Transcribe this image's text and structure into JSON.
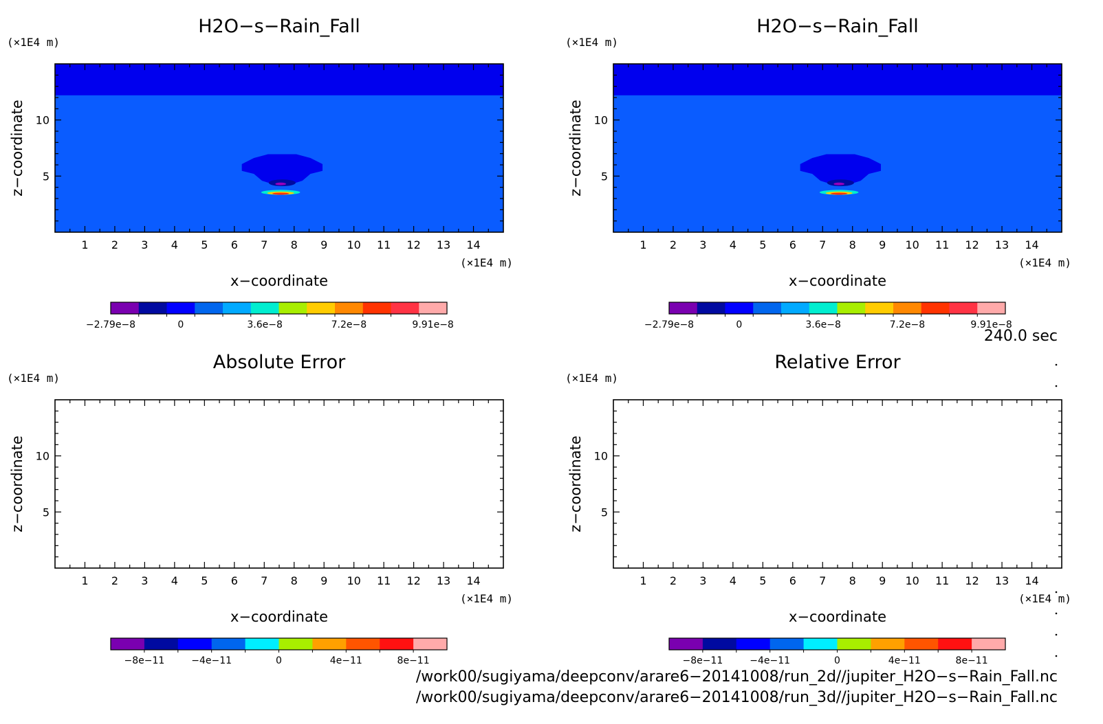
{
  "chart_data": [
    {
      "type": "heatmap",
      "title": "H2O−s−Rain_Fall",
      "xlabel": "x−coordinate",
      "ylabel": "z−coordinate",
      "x_unit": "(×1E4 m)",
      "y_unit": "(×1E4 m)",
      "xlim": [
        0,
        15
      ],
      "ylim": [
        0,
        15
      ],
      "x_ticks": [
        "1",
        "2",
        "3",
        "4",
        "5",
        "6",
        "7",
        "8",
        "9",
        "10",
        "11",
        "12",
        "13",
        "14"
      ],
      "y_ticks": [
        "5",
        "10"
      ],
      "grid": false,
      "colorbar": {
        "labels": [
          "−2.79e−8",
          "0",
          "3.6e−8",
          "7.2e−8",
          "9.91e−8"
        ],
        "colors": [
          "#7a00b0",
          "#000aa0",
          "#0000ff",
          "#0066ee",
          "#00aaff",
          "#00eed0",
          "#a8ee00",
          "#ffcc00",
          "#ff8800",
          "#ff3300",
          "#ff3344",
          "#ffaaaa"
        ]
      },
      "field": {
        "background_color": "#0a5cff",
        "top_band": {
          "z_from": 12.2,
          "z_to": 15,
          "color": "#0000ee"
        },
        "cloud": {
          "x_center": 7.6,
          "z_center": 5.6,
          "x_half": 1.35,
          "z_half": 1.35,
          "color": "#0000ee"
        },
        "core": [
          {
            "x": 7.6,
            "z": 4.4,
            "rx": 0.45,
            "rz": 0.3,
            "color": "#000aa0"
          },
          {
            "x": 7.55,
            "z": 4.3,
            "rx": 0.18,
            "rz": 0.12,
            "color": "#9900bb"
          },
          {
            "x": 7.55,
            "z": 3.55,
            "rx": 0.65,
            "rz": 0.22,
            "color": "#00eed0"
          },
          {
            "x": 7.55,
            "z": 3.48,
            "rx": 0.45,
            "rz": 0.14,
            "color": "#ffcc00"
          },
          {
            "x": 7.55,
            "z": 3.43,
            "rx": 0.28,
            "rz": 0.09,
            "color": "#ff3300"
          }
        ]
      }
    },
    {
      "type": "heatmap",
      "title": "H2O−s−Rain_Fall",
      "xlabel": "x−coordinate",
      "ylabel": "z−coordinate",
      "x_unit": "(×1E4 m)",
      "y_unit": "(×1E4 m)",
      "xlim": [
        0,
        15
      ],
      "ylim": [
        0,
        15
      ],
      "x_ticks": [
        "1",
        "2",
        "3",
        "4",
        "5",
        "6",
        "7",
        "8",
        "9",
        "10",
        "11",
        "12",
        "13",
        "14"
      ],
      "y_ticks": [
        "5",
        "10"
      ],
      "grid": false,
      "colorbar": {
        "labels": [
          "−2.79e−8",
          "0",
          "3.6e−8",
          "7.2e−8",
          "9.91e−8"
        ],
        "colors": [
          "#7a00b0",
          "#000aa0",
          "#0000ff",
          "#0066ee",
          "#00aaff",
          "#00eed0",
          "#a8ee00",
          "#ffcc00",
          "#ff8800",
          "#ff3300",
          "#ff3344",
          "#ffaaaa"
        ]
      },
      "field": {
        "background_color": "#0a5cff",
        "top_band": {
          "z_from": 12.2,
          "z_to": 15,
          "color": "#0000ee"
        },
        "cloud": {
          "x_center": 7.6,
          "z_center": 5.6,
          "x_half": 1.35,
          "z_half": 1.35,
          "color": "#0000ee"
        },
        "core": [
          {
            "x": 7.6,
            "z": 4.4,
            "rx": 0.45,
            "rz": 0.3,
            "color": "#000aa0"
          },
          {
            "x": 7.55,
            "z": 4.3,
            "rx": 0.18,
            "rz": 0.12,
            "color": "#9900bb"
          },
          {
            "x": 7.55,
            "z": 3.55,
            "rx": 0.65,
            "rz": 0.22,
            "color": "#00eed0"
          },
          {
            "x": 7.55,
            "z": 3.48,
            "rx": 0.45,
            "rz": 0.14,
            "color": "#ffcc00"
          },
          {
            "x": 7.55,
            "z": 3.43,
            "rx": 0.28,
            "rz": 0.09,
            "color": "#ff3300"
          }
        ]
      }
    },
    {
      "type": "heatmap",
      "title": "Absolute Error",
      "xlabel": "x−coordinate",
      "ylabel": "z−coordinate",
      "x_unit": "(×1E4 m)",
      "y_unit": "(×1E4 m)",
      "xlim": [
        0,
        15
      ],
      "ylim": [
        0,
        15
      ],
      "x_ticks": [
        "1",
        "2",
        "3",
        "4",
        "5",
        "6",
        "7",
        "8",
        "9",
        "10",
        "11",
        "12",
        "13",
        "14"
      ],
      "y_ticks": [
        "5",
        "10"
      ],
      "grid": false,
      "colorbar": {
        "labels": [
          "−8e−11",
          "−4e−11",
          "0",
          "4e−11",
          "8e−11"
        ],
        "colors": [
          "#7a00b0",
          "#000aa0",
          "#0000ff",
          "#0066ee",
          "#00eeff",
          "#a8ee00",
          "#ffa000",
          "#ff5500",
          "#ff1111",
          "#ffaaaa"
        ]
      },
      "field": {
        "background_color": "#ffffff"
      }
    },
    {
      "type": "heatmap",
      "title": "Relative Error",
      "xlabel": "x−coordinate",
      "ylabel": "z−coordinate",
      "x_unit": "(×1E4 m)",
      "y_unit": "(×1E4 m)",
      "xlim": [
        0,
        15
      ],
      "ylim": [
        0,
        15
      ],
      "x_ticks": [
        "1",
        "2",
        "3",
        "4",
        "5",
        "6",
        "7",
        "8",
        "9",
        "10",
        "11",
        "12",
        "13",
        "14"
      ],
      "y_ticks": [
        "5",
        "10"
      ],
      "grid": false,
      "colorbar": {
        "labels": [
          "−8e−11",
          "−4e−11",
          "0",
          "4e−11",
          "8e−11"
        ],
        "colors": [
          "#7a00b0",
          "#000aa0",
          "#0000ff",
          "#0066ee",
          "#00eeff",
          "#a8ee00",
          "#ffa000",
          "#ff5500",
          "#ff1111",
          "#ffaaaa"
        ]
      },
      "field": {
        "background_color": "#ffffff"
      }
    }
  ],
  "info": {
    "time_label": "240.0 sec",
    "file_paths": [
      "/work00/sugiyama/deepconv/arare6−20141008/run_2d//jupiter_H2O−s−Rain_Fall.nc",
      "/work00/sugiyama/deepconv/arare6−20141008/run_3d//jupiter_H2O−s−Rain_Fall.nc"
    ]
  }
}
